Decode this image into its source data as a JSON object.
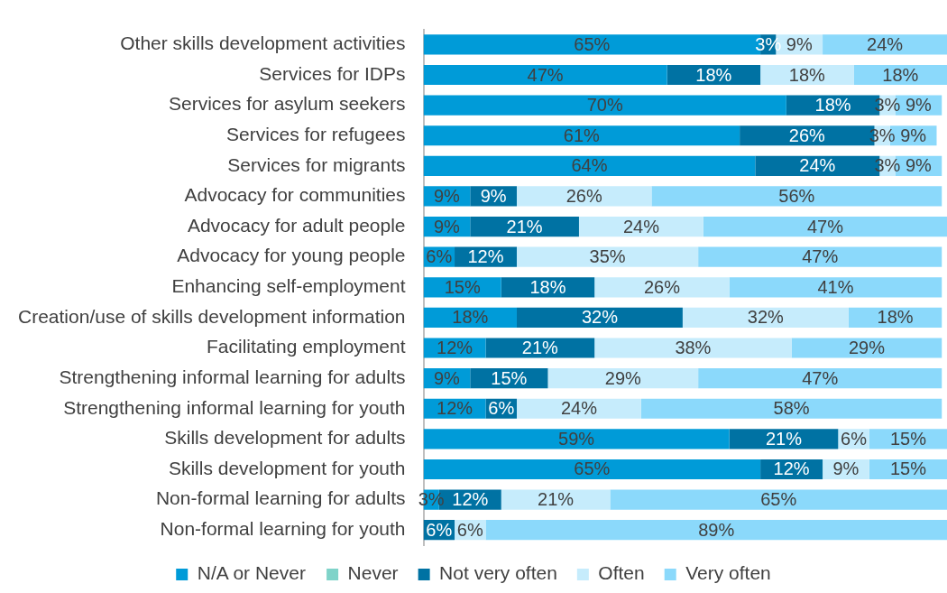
{
  "chart_data": {
    "type": "bar",
    "orientation": "horizontal",
    "stacked": true,
    "legend": "bottom",
    "tick_labels": "y",
    "categories": [
      "Other skills development activities",
      "Services for IDPs",
      "Services for asylum seekers",
      "Services for refugees",
      "Services for migrants",
      "Advocacy for communities",
      "Advocacy for adult people",
      "Advocacy for young people",
      "Enhancing self-employment",
      "Creation/use of skills development information",
      "Facilitating employment",
      "Strengthening informal learning for adults",
      "Strengthening informal learning for youth",
      "Skills development for adults",
      "Skills development for youth",
      "Non-formal learning for adults",
      "Non-formal learning for youth"
    ],
    "series": [
      {
        "name": "N/A or Never",
        "color": "#009bd8",
        "values": [
          65,
          47,
          70,
          61,
          64,
          9,
          9,
          6,
          15,
          18,
          12,
          9,
          12,
          59,
          65,
          3,
          null
        ],
        "value_labels": [
          "65%",
          "47%",
          "70%",
          "61%",
          "64%",
          "9%",
          "9%",
          "6%",
          "15%",
          "18%",
          "12%",
          "9%",
          "12%",
          "59%",
          "65%",
          "3%",
          null
        ]
      },
      {
        "name": "Never",
        "color": "#7fd3c9",
        "values": [
          null,
          null,
          null,
          null,
          null,
          null,
          null,
          null,
          null,
          null,
          null,
          null,
          null,
          null,
          null,
          null,
          null
        ]
      },
      {
        "name": "Not very often",
        "color": "#0072a3",
        "values": [
          3,
          18,
          18,
          26,
          24,
          9,
          21,
          12,
          18,
          32,
          21,
          15,
          6,
          21,
          12,
          12,
          6
        ],
        "value_labels": [
          "3%",
          "18%",
          "18%",
          "26%",
          "24%",
          "9%",
          "21%",
          "12%",
          "18%",
          "32%",
          "21%",
          "15%",
          "6%",
          "21%",
          "12%",
          "12%",
          "6%"
        ]
      },
      {
        "name": "Often",
        "color": "#c6ecfc",
        "values": [
          9,
          18,
          3,
          3,
          3,
          26,
          24,
          35,
          26,
          32,
          38,
          29,
          24,
          6,
          9,
          21,
          6
        ],
        "value_labels": [
          "9%",
          "18%",
          "3%",
          "3%",
          "3%",
          "26%",
          "24%",
          "35%",
          "26%",
          "32%",
          "38%",
          "29%",
          "24%",
          "6%",
          "9%",
          "21%",
          "6%"
        ]
      },
      {
        "name": "Very often",
        "color": "#8bd9fb",
        "values": [
          24,
          18,
          9,
          9,
          9,
          56,
          47,
          47,
          41,
          18,
          29,
          47,
          58,
          15,
          15,
          65,
          89
        ],
        "value_labels": [
          "24%",
          "18%",
          "9%",
          "9%",
          "9%",
          "56%",
          "47%",
          "47%",
          "41%",
          "18%",
          "29%",
          "47%",
          "58%",
          "15%",
          "15%",
          "65%",
          "89%"
        ]
      }
    ]
  }
}
